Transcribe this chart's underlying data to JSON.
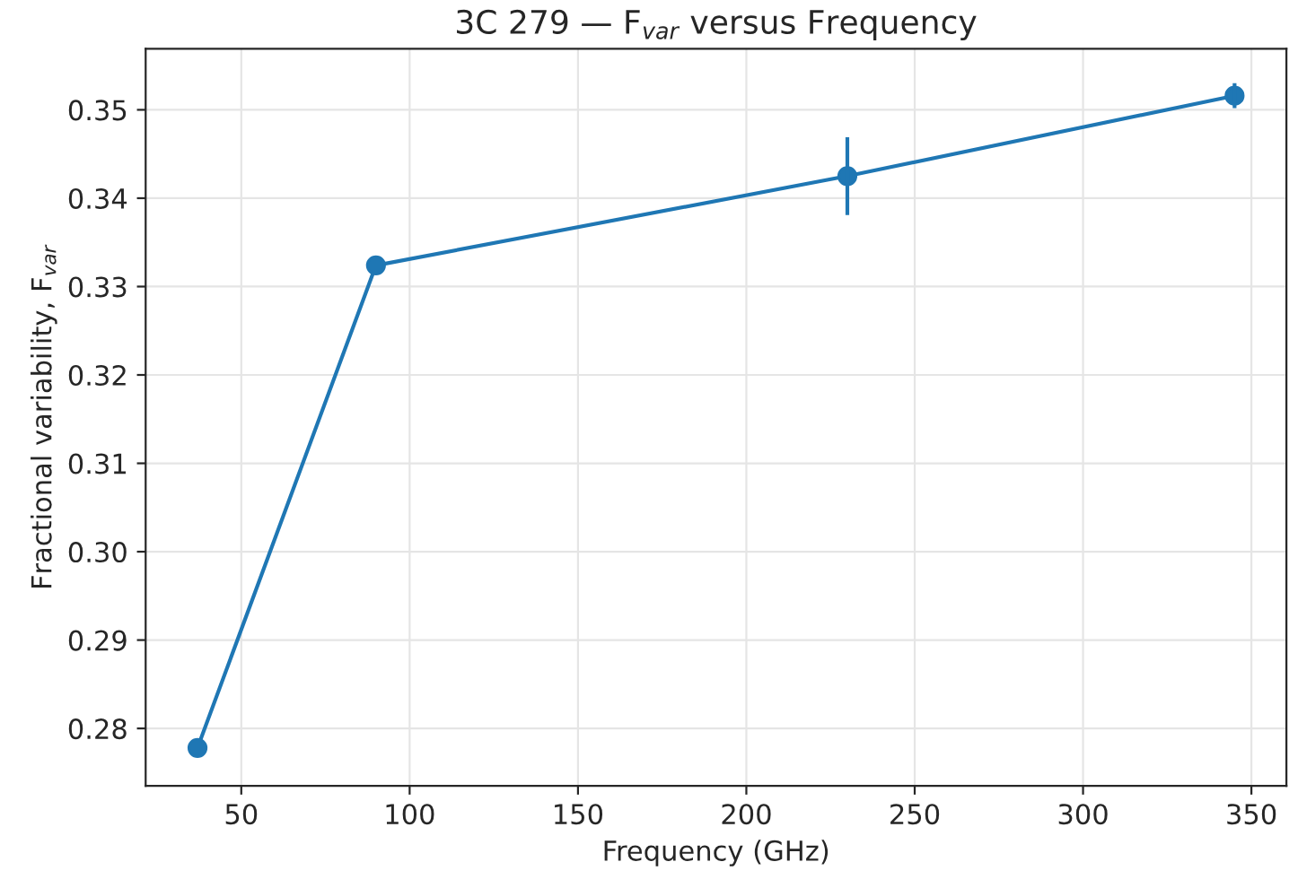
{
  "chart_data": {
    "type": "line",
    "title": "3C 279 — F$_{var}$ versus Frequency",
    "xlabel": "Frequency (GHz)",
    "ylabel": "Fractional variability, F$_{var}$",
    "x": [
      37,
      90,
      230,
      345
    ],
    "series": [
      {
        "color": "#1f77b4",
        "values": [
          0.2778,
          0.3324,
          0.3425,
          0.3516
        ],
        "errors": [
          null,
          null,
          0.0044,
          0.0014
        ]
      }
    ],
    "xlim": [
      21.6,
      360.4
    ],
    "xticks": [
      50,
      100,
      150,
      200,
      250,
      300,
      350
    ],
    "ylim": [
      0.2735,
      0.3569
    ],
    "yticks": [
      {
        "value": 0.28,
        "label": "0.28"
      },
      {
        "value": 0.29,
        "label": "0.29"
      },
      {
        "value": 0.3,
        "label": "0.30"
      },
      {
        "value": 0.31,
        "label": "0.31"
      },
      {
        "value": 0.32,
        "label": "0.32"
      },
      {
        "value": 0.33,
        "label": "0.33"
      },
      {
        "value": 0.34,
        "label": "0.34"
      },
      {
        "value": 0.35,
        "label": "0.35"
      }
    ],
    "grid": true,
    "marker": "circle",
    "line_style": "solid"
  }
}
